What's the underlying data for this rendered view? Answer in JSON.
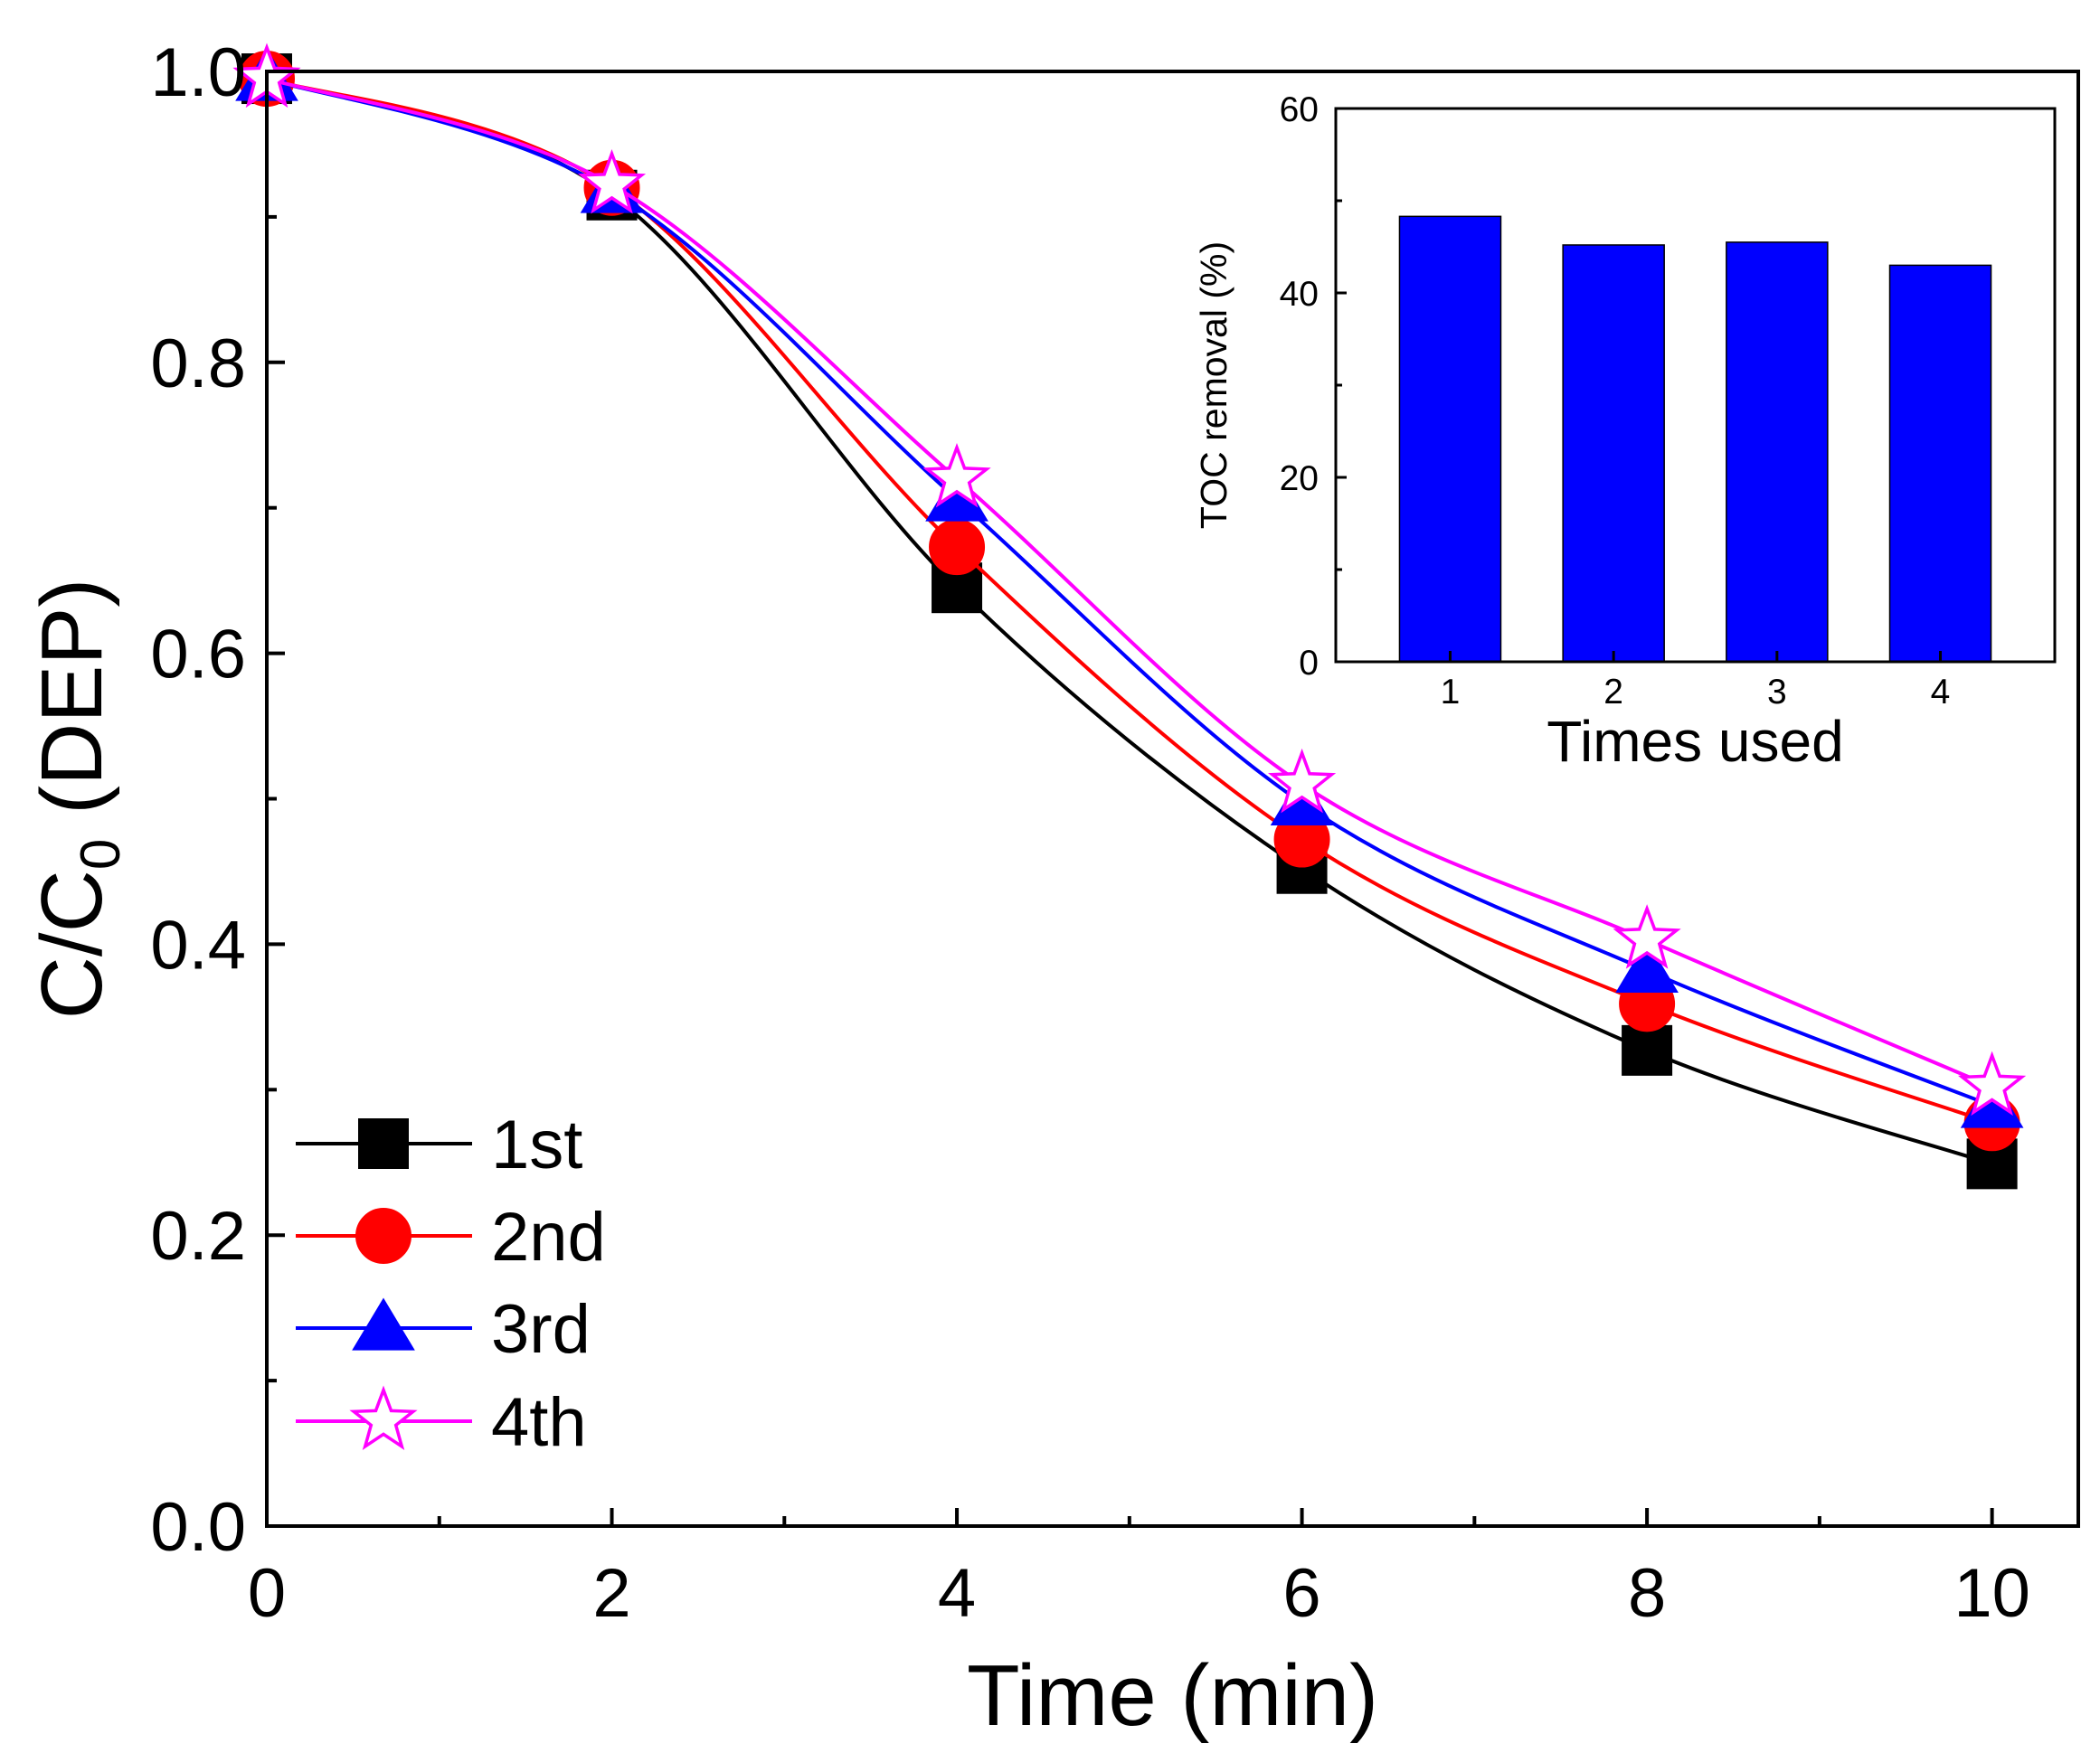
{
  "chart_data": [
    {
      "type": "line",
      "title": "",
      "xlabel": "Time (min)",
      "ylabel_main": "C/C",
      "ylabel_sub": "0",
      "ylabel_suffix": " (DEP)",
      "xlim": [
        0,
        10.5
      ],
      "ylim": [
        0,
        1.0
      ],
      "x_major_ticks": [
        0,
        2,
        4,
        6,
        8,
        10
      ],
      "x_minor_ticks": [
        1,
        3,
        5,
        7,
        9
      ],
      "x_tick_labels": [
        "0",
        "2",
        "4",
        "6",
        "8",
        "10"
      ],
      "y_major_ticks": [
        0,
        0.2,
        0.4,
        0.6,
        0.8,
        1.0
      ],
      "y_minor_ticks": [
        0.1,
        0.3,
        0.5,
        0.7,
        0.9
      ],
      "y_tick_labels": [
        "0.0",
        "0.2",
        "0.4",
        "0.6",
        "0.8",
        "1.0"
      ],
      "grid": false,
      "legend_position": "bottom-left",
      "series": [
        {
          "name": "1st",
          "marker": "square",
          "color": "#000000",
          "marker_fill": "#000000",
          "x": [
            0,
            2,
            4,
            6,
            8,
            10
          ],
          "y": [
            0.995,
            0.915,
            0.645,
            0.452,
            0.327,
            0.249
          ]
        },
        {
          "name": "2nd",
          "marker": "circle",
          "color": "#ff0000",
          "marker_fill": "#ff0000",
          "x": [
            0,
            2,
            4,
            6,
            8,
            10
          ],
          "y": [
            0.995,
            0.92,
            0.673,
            0.472,
            0.359,
            0.277
          ]
        },
        {
          "name": "3rd",
          "marker": "triangle",
          "color": "#0000ff",
          "marker_fill": "#0000ff",
          "x": [
            0,
            2,
            4,
            6,
            8,
            10
          ],
          "y": [
            0.995,
            0.918,
            0.706,
            0.497,
            0.382,
            0.289
          ]
        },
        {
          "name": "4th",
          "marker": "star",
          "color": "#ff00ff",
          "marker_fill": "#ffffff",
          "x": [
            0,
            2,
            4,
            6,
            8,
            10
          ],
          "y": [
            0.995,
            0.922,
            0.72,
            0.51,
            0.403,
            0.302
          ]
        }
      ]
    },
    {
      "type": "bar",
      "title": "",
      "xlabel": "Times used",
      "ylabel": "TOC removal (%)",
      "categories": [
        "1",
        "2",
        "3",
        "4"
      ],
      "values": [
        48.3,
        45.2,
        45.5,
        43.0
      ],
      "bar_color": "#0000ff",
      "xlim": [
        0.3,
        4.7
      ],
      "ylim": [
        0,
        60
      ],
      "y_major_ticks": [
        0,
        20,
        40,
        60
      ],
      "y_minor_ticks": [
        10,
        30,
        50
      ],
      "y_tick_labels": [
        "0",
        "20",
        "40",
        "60"
      ],
      "grid": false,
      "placement": "inset top-right"
    }
  ]
}
